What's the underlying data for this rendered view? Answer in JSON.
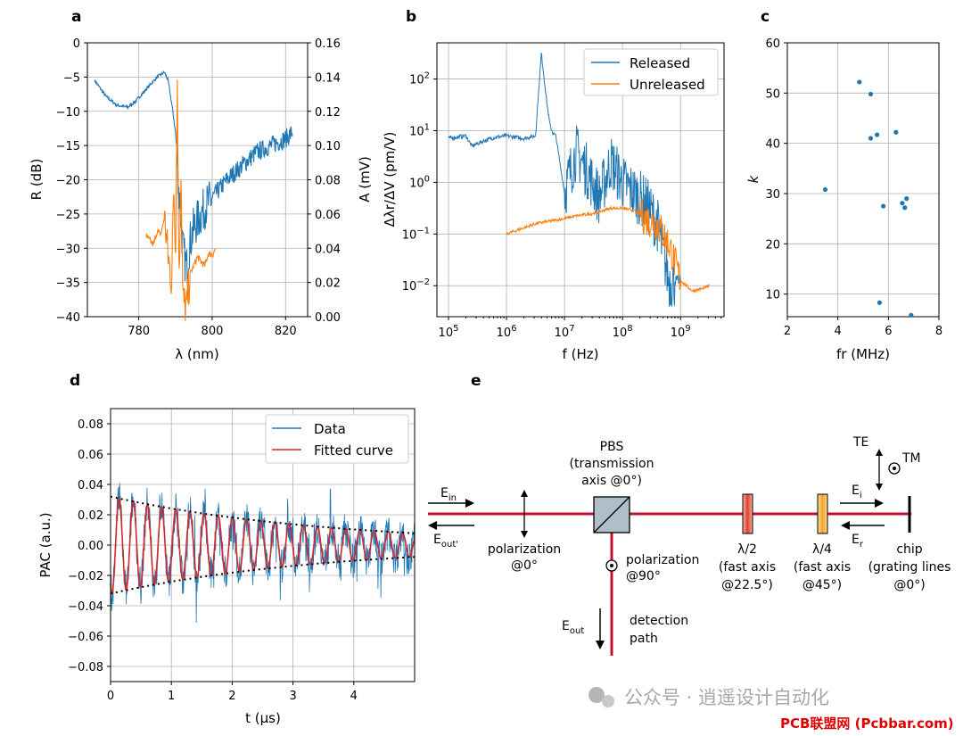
{
  "colors": {
    "blue": "#1f77b4",
    "orange": "#ff7f0e",
    "red": "#d62728",
    "beam": "#c8102e",
    "grid": "#b0b0b0"
  },
  "panels": {
    "a": "a",
    "b": "b",
    "c": "c",
    "d": "d",
    "e": "e"
  },
  "chart_data": [
    {
      "id": "a",
      "type": "line",
      "xlabel": "λ (nm)",
      "ylabel": "R (dB)",
      "y2label": "A (mV)",
      "xlim": [
        766,
        826
      ],
      "ylim": [
        -40,
        0
      ],
      "y2lim": [
        0,
        0.16
      ],
      "xticks": [
        "780",
        "800",
        "820"
      ],
      "yticks": [
        "0",
        "−5",
        "−10",
        "−15",
        "−20",
        "−25",
        "−30",
        "−35",
        "−40"
      ],
      "y2ticks": [
        "0.00",
        "0.02",
        "0.04",
        "0.06",
        "0.08",
        "0.10",
        "0.12",
        "0.14",
        "0.16"
      ],
      "series": [
        {
          "name": "R",
          "axis": "left",
          "color": "blue",
          "x": [
            768,
            771,
            774,
            777,
            779,
            782,
            785,
            787,
            788,
            789,
            790,
            791,
            792,
            793,
            794,
            795,
            796,
            798,
            801,
            804,
            808,
            812,
            816,
            820,
            822
          ],
          "y": [
            -5.5,
            -7.8,
            -9.1,
            -9.4,
            -8.6,
            -6.8,
            -5,
            -4.3,
            -5.5,
            -9,
            -13,
            -22,
            -30,
            -33,
            -29,
            -27,
            -26,
            -24,
            -22,
            -20,
            -18,
            -16,
            -15,
            -14,
            -13
          ]
        },
        {
          "name": "A",
          "axis": "right",
          "color": "orange",
          "x": [
            782,
            784,
            785,
            786,
            787,
            788,
            789,
            789.5,
            790,
            790.5,
            791,
            791.5,
            792,
            793,
            794,
            795,
            796,
            797,
            798,
            799,
            800,
            801
          ],
          "y": [
            0.047,
            0.042,
            0.05,
            0.048,
            0.058,
            0.035,
            0.02,
            0.08,
            0.04,
            0.14,
            0.02,
            0.09,
            0.01,
            0.005,
            0.025,
            0.03,
            0.035,
            0.032,
            0.03,
            0.037,
            0.036,
            0.04
          ]
        }
      ]
    },
    {
      "id": "b",
      "type": "line",
      "xlabel": "f (Hz)",
      "ylabel": "Δλr/ΔV (pm/V)",
      "xscale": "log",
      "yscale": "log",
      "xlim_log10": [
        4.8,
        9.75
      ],
      "ylim_log10": [
        -2.6,
        2.7
      ],
      "xticks": [
        "10^5",
        "10^6",
        "10^7",
        "10^8",
        "10^9"
      ],
      "yticks": [
        "10^2",
        "10^1",
        "10^0",
        "10^-1",
        "10^-2"
      ],
      "legend": [
        "Released",
        "Unreleased"
      ],
      "legend_loc": "upper right",
      "series": [
        {
          "name": "Released",
          "color": "blue",
          "log10x": [
            5,
            5.3,
            5.4,
            5.6,
            5.8,
            6,
            6.3,
            6.5,
            6.6,
            6.7,
            6.75,
            6.8,
            6.85,
            7,
            7.2,
            7.4,
            7.6,
            7.8,
            8,
            8.2,
            8.4,
            8.6,
            8.8,
            9
          ],
          "log10y": [
            0.85,
            0.9,
            0.7,
            0.8,
            0.87,
            0.9,
            0.85,
            0.9,
            2.5,
            1.5,
            1.1,
            0.95,
            0.9,
            -0.2,
            0.6,
            0.2,
            -0.3,
            0.4,
            0,
            -0.2,
            -0.4,
            -0.8,
            -1.9,
            -1.9
          ]
        },
        {
          "name": "Unreleased",
          "color": "orange",
          "log10x": [
            6,
            6.5,
            7,
            7.2,
            7.5,
            7.8,
            8,
            8.2,
            8.4,
            8.6,
            8.8,
            9,
            9.2,
            9.4,
            9.5
          ],
          "log10y": [
            -1,
            -0.8,
            -0.7,
            -0.65,
            -0.6,
            -0.5,
            -0.5,
            -0.55,
            -0.7,
            -0.8,
            -1.2,
            -1.9,
            -2.1,
            -2.05,
            -2
          ]
        }
      ]
    },
    {
      "id": "c",
      "type": "scatter",
      "xlabel": "fr (MHz)",
      "ylabel": "k",
      "xlim": [
        2,
        8
      ],
      "ylim": [
        5.5,
        60
      ],
      "xticks": [
        "2",
        "4",
        "6",
        "8"
      ],
      "yticks": [
        "10",
        "20",
        "30",
        "40",
        "50",
        "60"
      ],
      "color": "blue",
      "x": [
        3.5,
        4.85,
        5.3,
        5.3,
        5.55,
        5.65,
        5.8,
        6.3,
        6.55,
        6.65,
        6.72,
        6.9
      ],
      "y": [
        30.8,
        52.2,
        49.8,
        41,
        41.7,
        8.3,
        27.5,
        42.2,
        28.1,
        27.2,
        29,
        5.8
      ]
    },
    {
      "id": "d",
      "type": "line",
      "xlabel": "t (μs)",
      "ylabel": "PAC (a.u.)",
      "xlim": [
        0,
        5
      ],
      "ylim": [
        -0.09,
        0.09
      ],
      "xticks": [
        "0",
        "1",
        "2",
        "3",
        "4"
      ],
      "yticks": [
        "0.08",
        "0.06",
        "0.04",
        "0.02",
        "0.00",
        "−0.02",
        "−0.04",
        "−0.06",
        "−0.08"
      ],
      "legend": [
        "Data",
        "Fitted curve"
      ],
      "legend_loc": "upper right",
      "fit": {
        "amplitude": 0.032,
        "decay_to": 0.0078,
        "period_us": 0.233,
        "phase_us": 0.14
      }
    }
  ],
  "diagram": {
    "pbs_title": "PBS",
    "pbs_sub1": "(transmission",
    "pbs_sub2": "axis @0°)",
    "pol0_line1": "polarization",
    "pol0_line2": "@0°",
    "pol90_line1": "polarization",
    "pol90_line2": "@90°",
    "hwp_line1": "λ/2",
    "hwp_line2": "(fast axis",
    "hwp_line3": "@22.5°)",
    "qwp_line1": "λ/4",
    "qwp_line2": "(fast axis",
    "qwp_line3": "@45°)",
    "chip_line1": "chip",
    "chip_line2": "(grating lines",
    "chip_line3": "@0°)",
    "det_line1": "detection",
    "det_line2": "path",
    "ein": "E",
    "ein_sub": "in",
    "eoutp": "E",
    "eoutp_sub": "out'",
    "eout": "E",
    "eout_sub": "out",
    "ei": "E",
    "ei_sub": "i",
    "er": "E",
    "er_sub": "r",
    "te": "TE",
    "tm": "TM"
  },
  "watermark": {
    "wechat": "公众号 · 逍遥设计自动化",
    "site": "PCB联盟网 (Pcbbar.com)"
  }
}
